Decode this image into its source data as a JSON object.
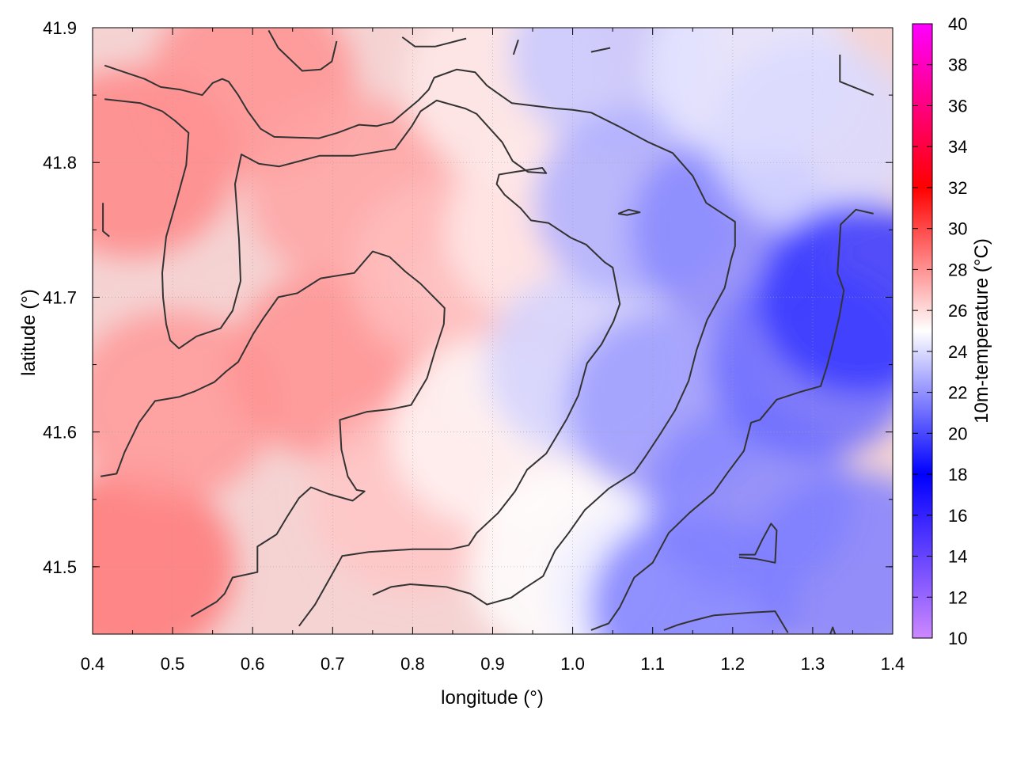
{
  "chart_data": {
    "type": "heatmap",
    "title": "",
    "xlabel": "longitude (°)",
    "ylabel": "latitude (°)",
    "colorbar_label": "10m-temperature (°C)",
    "xlim": [
      0.4,
      1.4
    ],
    "ylim": [
      41.45,
      41.9
    ],
    "xticks": [
      0.4,
      0.5,
      0.6,
      0.7,
      0.8,
      0.9,
      1.0,
      1.1,
      1.2,
      1.3,
      1.4
    ],
    "yticks": [
      41.5,
      41.6,
      41.7,
      41.8,
      41.9
    ],
    "x_tick_labels": [
      "0.4",
      "0.5",
      "0.6",
      "0.7",
      "0.8",
      "0.9",
      "1.0",
      "1.1",
      "1.2",
      "1.3",
      "1.4"
    ],
    "y_tick_labels": [
      "41.5",
      "41.6",
      "41.7",
      "41.8",
      "41.9"
    ],
    "colorbar_range": [
      10,
      40
    ],
    "colorbar_ticks": [
      10,
      12,
      14,
      16,
      18,
      20,
      22,
      24,
      26,
      28,
      30,
      32,
      34,
      36,
      38,
      40
    ],
    "colorbar_tick_labels": [
      "10",
      "12",
      "14",
      "16",
      "18",
      "20",
      "22",
      "24",
      "26",
      "28",
      "30",
      "32",
      "34",
      "36",
      "38",
      "40"
    ],
    "colormap_stops": [
      {
        "value": 10,
        "color": "#cc88ff"
      },
      {
        "value": 18,
        "color": "#0000ff"
      },
      {
        "value": 25,
        "color": "#ffffff"
      },
      {
        "value": 32,
        "color": "#ff0000"
      },
      {
        "value": 40,
        "color": "#ff00ff"
      }
    ],
    "grid": true,
    "field_points": [
      {
        "lon": 0.45,
        "lat": 41.5,
        "t": 28.7
      },
      {
        "lon": 0.45,
        "lat": 41.8,
        "t": 28.3
      },
      {
        "lon": 0.5,
        "lat": 41.62,
        "t": 27.8
      },
      {
        "lon": 0.6,
        "lat": 41.86,
        "t": 28.0
      },
      {
        "lon": 0.7,
        "lat": 41.65,
        "t": 28.0
      },
      {
        "lon": 0.72,
        "lat": 41.78,
        "t": 27.5
      },
      {
        "lon": 0.85,
        "lat": 41.72,
        "t": 26.8
      },
      {
        "lon": 0.8,
        "lat": 41.55,
        "t": 26.6
      },
      {
        "lon": 0.9,
        "lat": 41.6,
        "t": 25.3
      },
      {
        "lon": 0.92,
        "lat": 41.86,
        "t": 25.6
      },
      {
        "lon": 0.97,
        "lat": 41.75,
        "t": 25.6
      },
      {
        "lon": 1.0,
        "lat": 41.5,
        "t": 25.0
      },
      {
        "lon": 1.02,
        "lat": 41.65,
        "t": 23.8
      },
      {
        "lon": 1.05,
        "lat": 41.88,
        "t": 23.5
      },
      {
        "lon": 1.08,
        "lat": 41.77,
        "t": 22.8
      },
      {
        "lon": 1.12,
        "lat": 41.62,
        "t": 22.3
      },
      {
        "lon": 1.1,
        "lat": 41.48,
        "t": 24.5
      },
      {
        "lon": 1.2,
        "lat": 41.75,
        "t": 21.8
      },
      {
        "lon": 1.22,
        "lat": 41.55,
        "t": 21.7
      },
      {
        "lon": 1.22,
        "lat": 41.87,
        "t": 24.3
      },
      {
        "lon": 1.3,
        "lat": 41.82,
        "t": 24.0
      },
      {
        "lon": 1.3,
        "lat": 41.65,
        "t": 21.0
      },
      {
        "lon": 1.36,
        "lat": 41.7,
        "t": 19.5
      },
      {
        "lon": 1.35,
        "lat": 41.5,
        "t": 21.5
      },
      {
        "lon": 1.15,
        "lat": 41.47,
        "t": 21.5
      }
    ],
    "contours": [
      {
        "points": [
          [
            0.415,
            41.872
          ],
          [
            0.445,
            41.866
          ],
          [
            0.465,
            41.862
          ],
          [
            0.485,
            41.856
          ],
          [
            0.51,
            41.854
          ],
          [
            0.537,
            41.85
          ],
          [
            0.55,
            41.859
          ],
          [
            0.562,
            41.862
          ],
          [
            0.57,
            41.86
          ],
          [
            0.582,
            41.85
          ],
          [
            0.594,
            41.838
          ],
          [
            0.61,
            41.825
          ],
          [
            0.627,
            41.819
          ],
          [
            0.683,
            41.818
          ],
          [
            0.706,
            41.822
          ],
          [
            0.733,
            41.828
          ],
          [
            0.755,
            41.827
          ],
          [
            0.775,
            41.83
          ],
          [
            0.785,
            41.835
          ],
          [
            0.807,
            41.846
          ],
          [
            0.82,
            41.854
          ],
          [
            0.827,
            41.863
          ],
          [
            0.855,
            41.869
          ],
          [
            0.878,
            41.867
          ],
          [
            0.893,
            41.857
          ],
          [
            0.912,
            41.849
          ],
          [
            0.924,
            41.844
          ],
          [
            0.98,
            41.84
          ],
          [
            1.0,
            41.839
          ],
          [
            1.023,
            41.837
          ],
          [
            1.057,
            41.827
          ],
          [
            1.095,
            41.815
          ],
          [
            1.125,
            41.807
          ],
          [
            1.15,
            41.79
          ],
          [
            1.167,
            41.77
          ],
          [
            1.19,
            41.761
          ],
          [
            1.203,
            41.756
          ],
          [
            1.203,
            41.738
          ],
          [
            1.198,
            41.728
          ],
          [
            1.19,
            41.707
          ],
          [
            1.168,
            41.683
          ],
          [
            1.155,
            41.661
          ],
          [
            1.145,
            41.638
          ],
          [
            1.128,
            41.616
          ],
          [
            1.11,
            41.599
          ],
          [
            1.09,
            41.581
          ],
          [
            1.077,
            41.57
          ],
          [
            1.045,
            41.558
          ],
          [
            1.015,
            41.542
          ],
          [
            0.995,
            41.525
          ],
          [
            0.978,
            41.512
          ],
          [
            0.963,
            41.493
          ],
          [
            0.94,
            41.484
          ],
          [
            0.923,
            41.477
          ],
          [
            0.893,
            41.472
          ],
          [
            0.872,
            41.48
          ],
          [
            0.842,
            41.485
          ],
          [
            0.797,
            41.487
          ],
          [
            0.773,
            41.485
          ],
          [
            0.75,
            41.479
          ]
        ]
      },
      {
        "points": [
          [
            0.415,
            41.847
          ],
          [
            0.46,
            41.844
          ],
          [
            0.487,
            41.838
          ],
          [
            0.503,
            41.831
          ],
          [
            0.52,
            41.822
          ],
          [
            0.517,
            41.798
          ],
          [
            0.505,
            41.772
          ],
          [
            0.492,
            41.745
          ],
          [
            0.487,
            41.718
          ],
          [
            0.488,
            41.7
          ],
          [
            0.492,
            41.68
          ],
          [
            0.497,
            41.668
          ],
          [
            0.508,
            41.662
          ],
          [
            0.53,
            41.671
          ],
          [
            0.56,
            41.677
          ],
          [
            0.575,
            41.69
          ],
          [
            0.585,
            41.712
          ],
          [
            0.583,
            41.743
          ],
          [
            0.578,
            41.784
          ],
          [
            0.586,
            41.806
          ],
          [
            0.608,
            41.799
          ],
          [
            0.633,
            41.797
          ],
          [
            0.684,
            41.805
          ],
          [
            0.726,
            41.805
          ],
          [
            0.778,
            41.81
          ],
          [
            0.799,
            41.827
          ],
          [
            0.81,
            41.838
          ],
          [
            0.83,
            41.846
          ],
          [
            0.866,
            41.84
          ],
          [
            0.88,
            41.836
          ],
          [
            0.912,
            41.815
          ],
          [
            0.925,
            41.801
          ],
          [
            0.944,
            41.793
          ],
          [
            0.967,
            41.792
          ],
          [
            0.962,
            41.796
          ],
          [
            0.928,
            41.793
          ],
          [
            0.908,
            41.791
          ],
          [
            0.905,
            41.784
          ],
          [
            0.915,
            41.776
          ],
          [
            0.935,
            41.766
          ],
          [
            0.948,
            41.757
          ],
          [
            0.97,
            41.755
          ],
          [
            0.998,
            41.744
          ],
          [
            1.017,
            41.739
          ],
          [
            1.04,
            41.726
          ],
          [
            1.05,
            41.722
          ],
          [
            1.059,
            41.695
          ],
          [
            1.051,
            41.682
          ],
          [
            1.036,
            41.665
          ],
          [
            1.018,
            41.651
          ],
          [
            1.007,
            41.627
          ],
          [
            0.993,
            41.61
          ],
          [
            0.98,
            41.597
          ],
          [
            0.967,
            41.584
          ],
          [
            0.943,
            41.572
          ],
          [
            0.928,
            41.556
          ],
          [
            0.907,
            41.54
          ],
          [
            0.88,
            41.525
          ],
          [
            0.87,
            41.516
          ],
          [
            0.847,
            41.513
          ],
          [
            0.8,
            41.513
          ],
          [
            0.745,
            41.511
          ],
          [
            0.712,
            41.508
          ],
          [
            0.697,
            41.492
          ],
          [
            0.678,
            41.472
          ],
          [
            0.658,
            41.456
          ]
        ]
      },
      {
        "points": [
          [
            0.41,
            41.567
          ],
          [
            0.43,
            41.569
          ],
          [
            0.44,
            41.585
          ],
          [
            0.458,
            41.607
          ],
          [
            0.478,
            41.623
          ],
          [
            0.508,
            41.626
          ],
          [
            0.527,
            41.63
          ],
          [
            0.552,
            41.637
          ],
          [
            0.567,
            41.645
          ],
          [
            0.582,
            41.652
          ],
          [
            0.601,
            41.673
          ],
          [
            0.613,
            41.684
          ],
          [
            0.632,
            41.7
          ],
          [
            0.656,
            41.703
          ],
          [
            0.685,
            41.714
          ],
          [
            0.727,
            41.718
          ],
          [
            0.75,
            41.734
          ],
          [
            0.771,
            41.73
          ],
          [
            0.791,
            41.719
          ],
          [
            0.81,
            41.71
          ],
          [
            0.84,
            41.692
          ],
          [
            0.839,
            41.68
          ],
          [
            0.828,
            41.66
          ],
          [
            0.818,
            41.64
          ],
          [
            0.798,
            41.62
          ],
          [
            0.774,
            41.617
          ],
          [
            0.743,
            41.615
          ],
          [
            0.709,
            41.609
          ],
          [
            0.711,
            41.587
          ],
          [
            0.719,
            41.567
          ],
          [
            0.73,
            41.557
          ],
          [
            0.74,
            41.556
          ],
          [
            0.725,
            41.549
          ],
          [
            0.695,
            41.554
          ],
          [
            0.673,
            41.559
          ],
          [
            0.658,
            41.551
          ],
          [
            0.643,
            41.537
          ],
          [
            0.63,
            41.524
          ],
          [
            0.606,
            41.515
          ],
          [
            0.606,
            41.496
          ],
          [
            0.575,
            41.492
          ],
          [
            0.565,
            41.48
          ],
          [
            0.555,
            41.474
          ],
          [
            0.523,
            41.463
          ]
        ]
      },
      {
        "points": [
          [
            0.421,
            41.745
          ],
          [
            0.413,
            41.749
          ],
          [
            0.413,
            41.77
          ]
        ]
      },
      {
        "points": [
          [
            0.62,
            41.898
          ],
          [
            0.632,
            41.885
          ],
          [
            0.662,
            41.868
          ],
          [
            0.685,
            41.869
          ],
          [
            0.699,
            41.875
          ],
          [
            0.705,
            41.89
          ]
        ]
      },
      {
        "points": [
          [
            0.787,
            41.893
          ],
          [
            0.803,
            41.886
          ],
          [
            0.828,
            41.886
          ],
          [
            0.867,
            41.892
          ]
        ]
      },
      {
        "points": [
          [
            0.932,
            41.891
          ],
          [
            0.926,
            41.88
          ]
        ]
      },
      {
        "points": [
          [
            1.023,
            41.882
          ],
          [
            1.047,
            41.885
          ]
        ]
      },
      {
        "points": [
          [
            1.334,
            41.88
          ],
          [
            1.334,
            41.86
          ],
          [
            1.376,
            41.85
          ]
        ]
      },
      {
        "points": [
          [
            1.376,
            41.762
          ],
          [
            1.354,
            41.765
          ],
          [
            1.335,
            41.754
          ],
          [
            1.331,
            41.718
          ],
          [
            1.339,
            41.705
          ],
          [
            1.333,
            41.685
          ],
          [
            1.325,
            41.665
          ],
          [
            1.318,
            41.649
          ],
          [
            1.31,
            41.634
          ],
          [
            1.286,
            41.63
          ],
          [
            1.255,
            41.624
          ],
          [
            1.234,
            41.609
          ],
          [
            1.223,
            41.607
          ],
          [
            1.214,
            41.586
          ],
          [
            1.194,
            41.57
          ],
          [
            1.176,
            41.555
          ],
          [
            1.146,
            41.54
          ],
          [
            1.12,
            41.525
          ],
          [
            1.1,
            41.503
          ],
          [
            1.077,
            41.492
          ],
          [
            1.059,
            41.47
          ],
          [
            1.045,
            41.458
          ],
          [
            1.023,
            41.453
          ]
        ]
      },
      {
        "points": [
          [
            1.114,
            41.453
          ],
          [
            1.132,
            41.457
          ],
          [
            1.15,
            41.46
          ],
          [
            1.177,
            41.464
          ],
          [
            1.223,
            41.466
          ],
          [
            1.253,
            41.467
          ],
          [
            1.269,
            41.451
          ]
        ]
      },
      {
        "points": [
          [
            1.208,
            41.507
          ],
          [
            1.228,
            41.506
          ],
          [
            1.253,
            41.503
          ],
          [
            1.255,
            41.527
          ],
          [
            1.248,
            41.532
          ],
          [
            1.237,
            41.52
          ],
          [
            1.228,
            41.509
          ],
          [
            1.208,
            41.509
          ]
        ]
      },
      {
        "points": [
          [
            1.057,
            41.762
          ],
          [
            1.07,
            41.765
          ],
          [
            1.084,
            41.763
          ],
          [
            1.068,
            41.761
          ],
          [
            1.057,
            41.762
          ]
        ]
      },
      {
        "points": [
          [
            1.322,
            41.45
          ],
          [
            1.325,
            41.455
          ],
          [
            1.328,
            41.45
          ]
        ]
      }
    ]
  }
}
